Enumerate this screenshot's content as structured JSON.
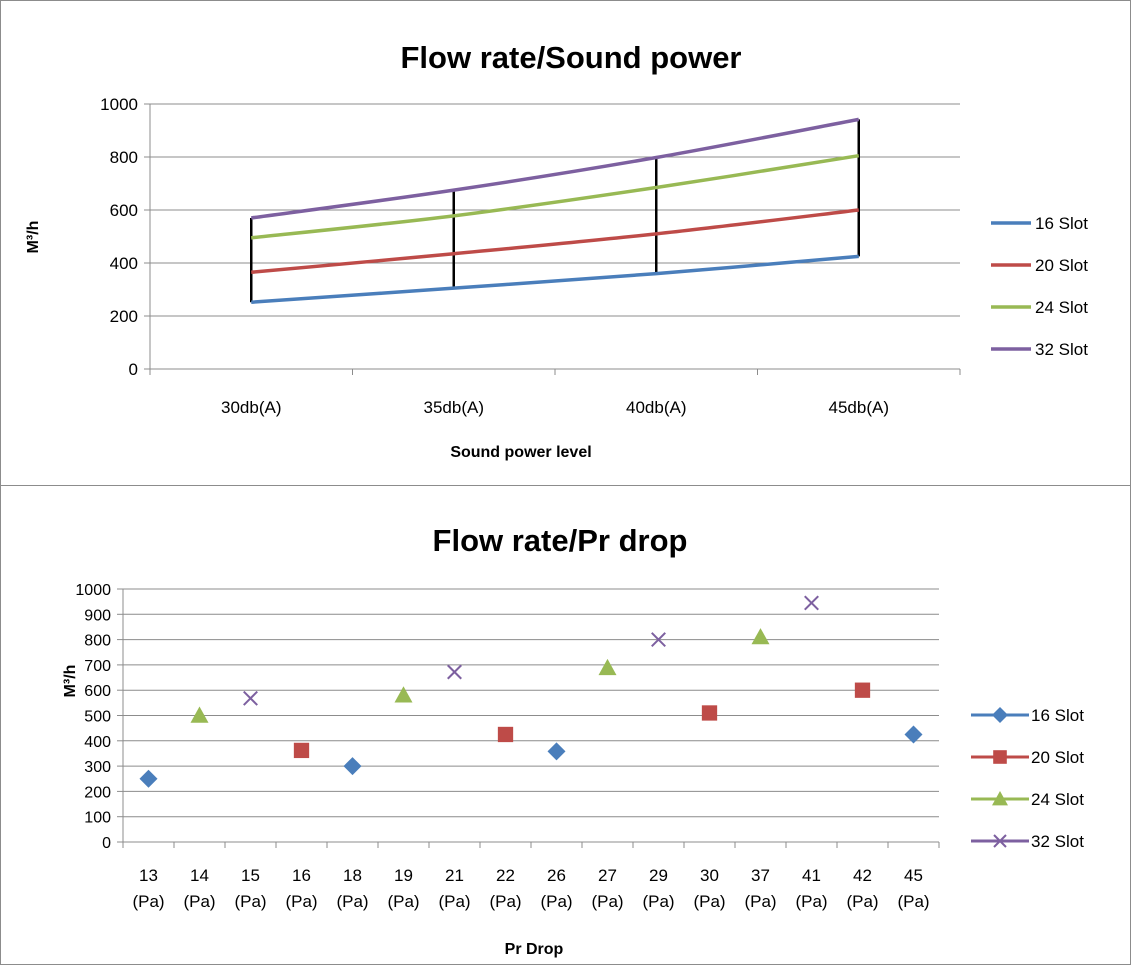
{
  "chart_data": [
    {
      "type": "line",
      "title": "Flow rate/Sound power",
      "xlabel": "Sound power level",
      "ylabel": "M³/h",
      "ylim": [
        0,
        1000
      ],
      "yticks": [
        "0",
        "200",
        "400",
        "600",
        "800",
        "1000"
      ],
      "categories": [
        "30db(A)",
        "35db(A)",
        "40db(A)",
        "45db(A)"
      ],
      "series": [
        {
          "name": "16 Slot",
          "color": "#4a7ebb",
          "values": [
            252,
            305,
            360,
            425
          ]
        },
        {
          "name": "20 Slot",
          "color": "#be4b48",
          "values": [
            365,
            435,
            510,
            600
          ]
        },
        {
          "name": "24 Slot",
          "color": "#98b954",
          "values": [
            495,
            578,
            685,
            805
          ]
        },
        {
          "name": "32 Slot",
          "color": "#7d60a0",
          "values": [
            570,
            675,
            798,
            942
          ]
        }
      ],
      "high_low_lines": true,
      "grid": true,
      "legend": "right"
    },
    {
      "type": "scatter",
      "title": "Flow rate/Pr drop",
      "xlabel": "Pr Drop",
      "ylabel": "M³/h",
      "ylim": [
        0,
        1000
      ],
      "yticks": [
        "0",
        "100",
        "200",
        "300",
        "400",
        "500",
        "600",
        "700",
        "800",
        "900",
        "1000"
      ],
      "categories": [
        [
          "13",
          "(Pa)"
        ],
        [
          "14",
          "(Pa)"
        ],
        [
          "15",
          "(Pa)"
        ],
        [
          "16",
          "(Pa)"
        ],
        [
          "18",
          "(Pa)"
        ],
        [
          "19",
          "(Pa)"
        ],
        [
          "21",
          "(Pa)"
        ],
        [
          "22",
          "(Pa)"
        ],
        [
          "26",
          "(Pa)"
        ],
        [
          "27",
          "(Pa)"
        ],
        [
          "29",
          "(Pa)"
        ],
        [
          "30",
          "(Pa)"
        ],
        [
          "37",
          "(Pa)"
        ],
        [
          "41",
          "(Pa)"
        ],
        [
          "42",
          "(Pa)"
        ],
        [
          "45",
          "(Pa)"
        ]
      ],
      "series": [
        {
          "name": "16 Slot",
          "marker": "diamond",
          "color": "#4a7ebb",
          "points": [
            {
              "x": "13",
              "y": 250
            },
            {
              "x": "18",
              "y": 300
            },
            {
              "x": "26",
              "y": 358
            },
            {
              "x": "45",
              "y": 425
            }
          ]
        },
        {
          "name": "20 Slot",
          "marker": "square",
          "color": "#be4b48",
          "points": [
            {
              "x": "16",
              "y": 362
            },
            {
              "x": "22",
              "y": 425
            },
            {
              "x": "30",
              "y": 510
            },
            {
              "x": "42",
              "y": 600
            }
          ]
        },
        {
          "name": "24 Slot",
          "marker": "triangle",
          "color": "#98b954",
          "points": [
            {
              "x": "14",
              "y": 500
            },
            {
              "x": "19",
              "y": 580
            },
            {
              "x": "27",
              "y": 688
            },
            {
              "x": "37",
              "y": 810
            }
          ]
        },
        {
          "name": "32 Slot",
          "marker": "x",
          "color": "#7d60a0",
          "points": [
            {
              "x": "15",
              "y": 568
            },
            {
              "x": "21",
              "y": 672
            },
            {
              "x": "29",
              "y": 800
            },
            {
              "x": "41",
              "y": 945
            }
          ]
        }
      ],
      "grid": true,
      "legend": "right"
    }
  ]
}
